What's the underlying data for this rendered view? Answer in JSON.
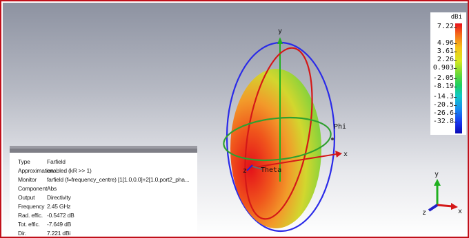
{
  "legend": {
    "unit": "dBi",
    "ticks": [
      "7.22",
      "4.96",
      "3.61",
      "2.26",
      "0.903",
      "-2.05",
      "-8.19",
      "-14.3",
      "-20.5",
      "-26.6",
      "-32.8"
    ]
  },
  "scene": {
    "axis_y": "y",
    "axis_x": "x",
    "axis_z": "z",
    "phi_label": "Phi",
    "theta_label": "Theta"
  },
  "triad": {
    "y": "y",
    "x": "x",
    "z": "z"
  },
  "info": [
    {
      "key": "Type",
      "value": "Farfield"
    },
    {
      "key": "Approximation",
      "value": "enabled (kR >> 1)"
    },
    {
      "key": "Monitor",
      "value": "farfield (f=frequency_centre) [1[1.0,0.0]+2[1.0,port2_pha..."
    },
    {
      "key": "Component",
      "value": "Abs"
    },
    {
      "key": "Output",
      "value": "Directivity"
    },
    {
      "key": "Frequency",
      "value": "2.45 GHz"
    },
    {
      "key": "Rad. effic.",
      "value": "-0.5472 dB"
    },
    {
      "key": "Tot. effic.",
      "value": "-7.649 dB"
    },
    {
      "key": "Dir.",
      "value": "7.221 dBi"
    }
  ],
  "colors": {
    "frame": "#c0101a",
    "pattern_hot": "#e8101a",
    "pattern_mid": "#f2b12a",
    "pattern_cool": "#7fd43a",
    "theta_circle": "#d01818",
    "phi_circle": "#2a8c2a",
    "meridian_circle": "#2222e0"
  }
}
